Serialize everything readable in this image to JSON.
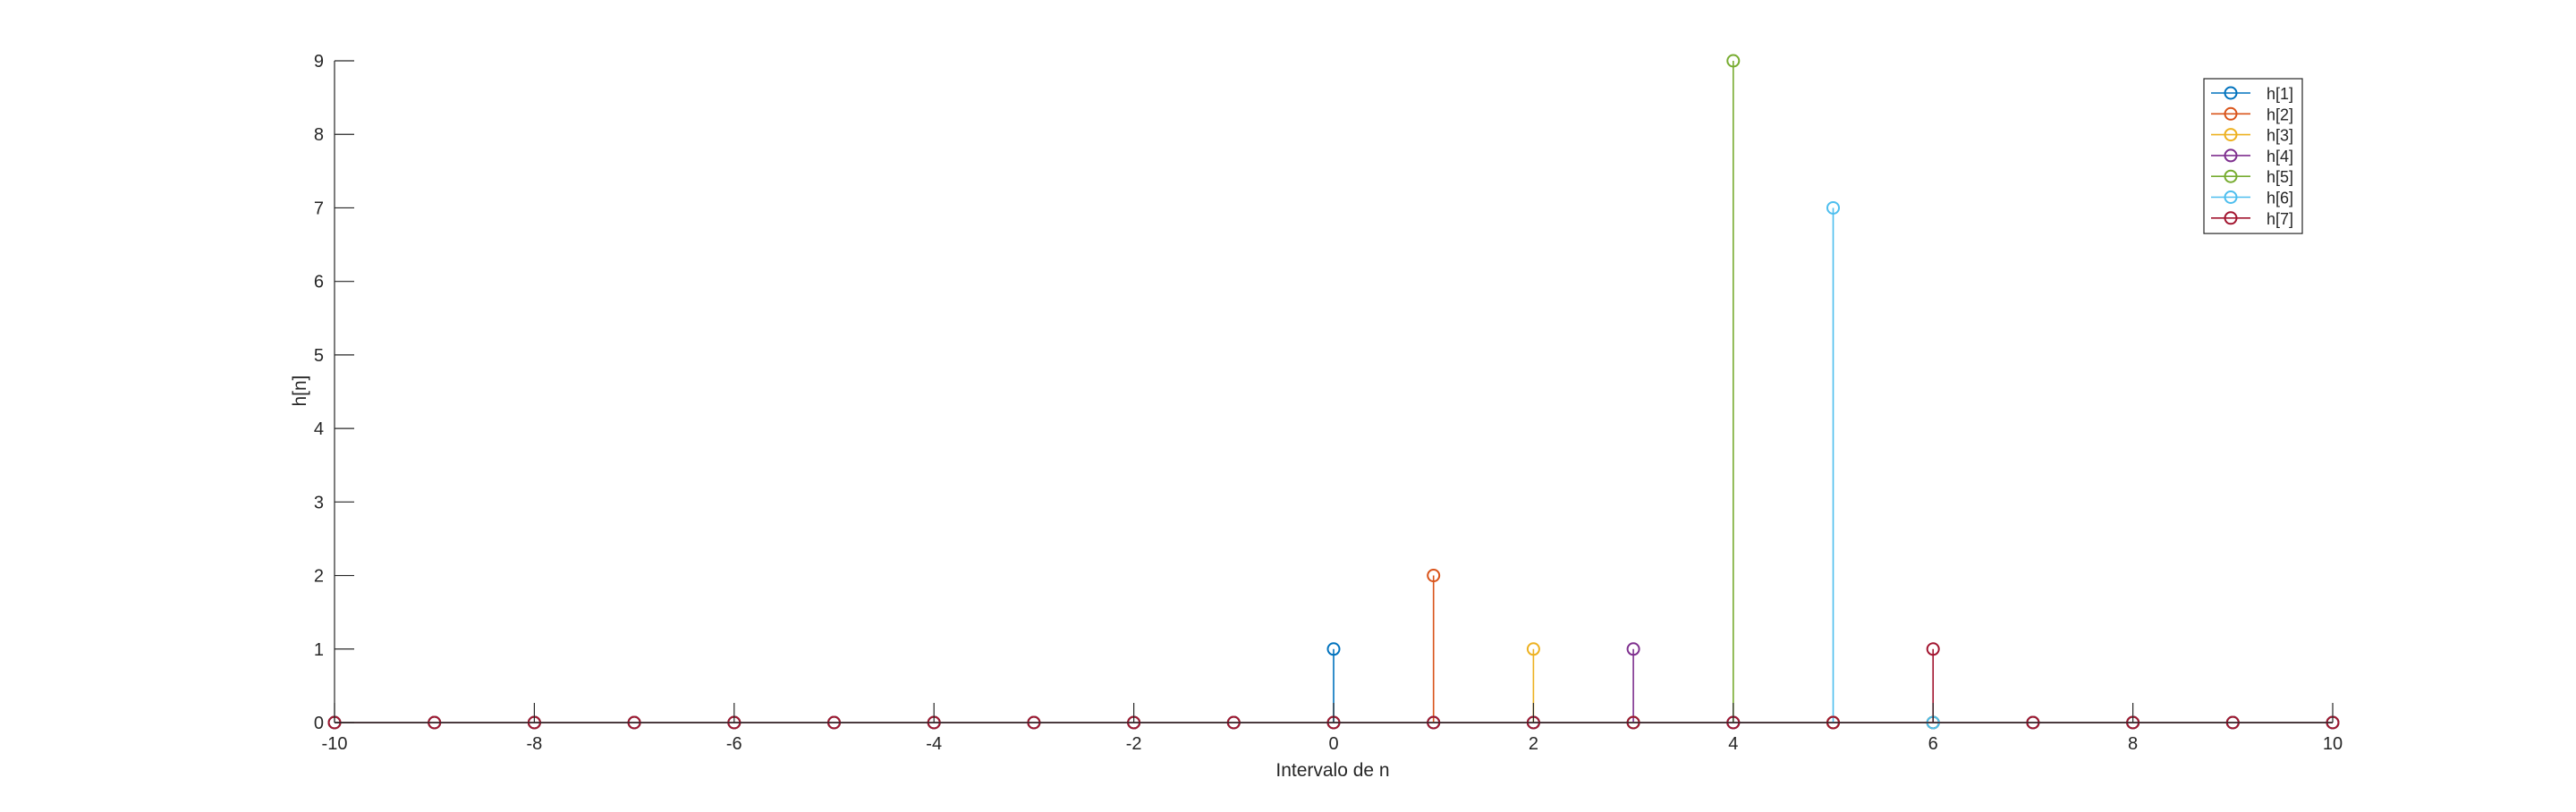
{
  "chart_data": {
    "type": "stem",
    "xlabel": "Intervalo de n",
    "ylabel": "h[n]",
    "xlim": [
      -10,
      10
    ],
    "ylim": [
      0,
      9
    ],
    "x_ticks": [
      -10,
      -8,
      -6,
      -4,
      -2,
      0,
      2,
      4,
      6,
      8,
      10
    ],
    "y_ticks": [
      0,
      1,
      2,
      3,
      4,
      5,
      6,
      7,
      8,
      9
    ],
    "grid": false,
    "legend_position": "top-right",
    "x": [
      -10,
      -9,
      -8,
      -7,
      -6,
      -5,
      -4,
      -3,
      -2,
      -1,
      0,
      1,
      2,
      3,
      4,
      5,
      6,
      7,
      8,
      9,
      10
    ],
    "series": [
      {
        "name": "h[1]",
        "color": "#0072BD",
        "values": [
          0,
          0,
          0,
          0,
          0,
          0,
          0,
          0,
          0,
          0,
          1,
          0,
          0,
          0,
          0,
          0,
          0,
          0,
          0,
          0,
          0
        ]
      },
      {
        "name": "h[2]",
        "color": "#D95319",
        "values": [
          0,
          0,
          0,
          0,
          0,
          0,
          0,
          0,
          0,
          0,
          0,
          2,
          0,
          0,
          0,
          0,
          0,
          0,
          0,
          0,
          0
        ]
      },
      {
        "name": "h[3]",
        "color": "#EDB120",
        "values": [
          0,
          0,
          0,
          0,
          0,
          0,
          0,
          0,
          0,
          0,
          0,
          0,
          1,
          0,
          0,
          0,
          0,
          0,
          0,
          0,
          0
        ]
      },
      {
        "name": "h[4]",
        "color": "#7E2F8E",
        "values": [
          0,
          0,
          0,
          0,
          0,
          0,
          0,
          0,
          0,
          0,
          0,
          0,
          0,
          1,
          0,
          0,
          0,
          0,
          0,
          0,
          0
        ]
      },
      {
        "name": "h[5]",
        "color": "#77AC30",
        "values": [
          0,
          0,
          0,
          0,
          0,
          0,
          0,
          0,
          0,
          0,
          0,
          0,
          0,
          0,
          9,
          0,
          0,
          0,
          0,
          0,
          0
        ]
      },
      {
        "name": "h[6]",
        "color": "#4DBEEE",
        "values": [
          0,
          0,
          0,
          0,
          0,
          0,
          0,
          0,
          0,
          0,
          0,
          0,
          0,
          0,
          0,
          7,
          0,
          0,
          0,
          0,
          0
        ]
      },
      {
        "name": "h[7]",
        "color": "#A2142F",
        "values": [
          0,
          0,
          0,
          0,
          0,
          0,
          0,
          0,
          0,
          0,
          0,
          0,
          0,
          0,
          0,
          0,
          1,
          0,
          0,
          0,
          0
        ]
      }
    ]
  }
}
